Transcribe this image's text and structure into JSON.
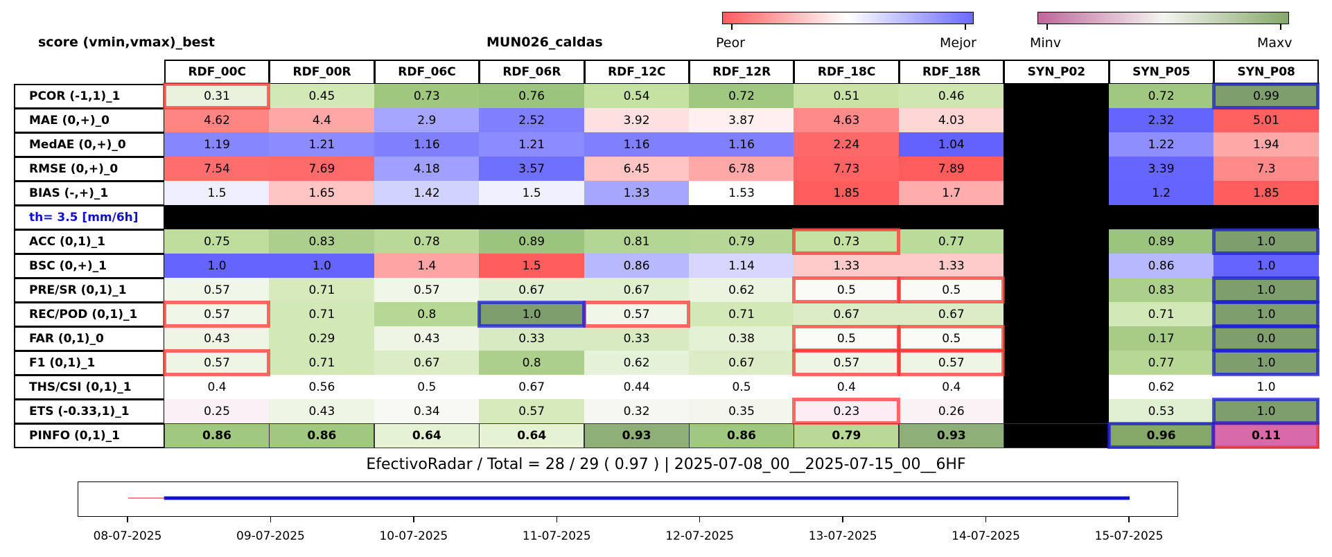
{
  "chart_data": {
    "type": "heatmap",
    "title_left": "score (vmin,vmax)_best",
    "title_center": "MUN026_caldas",
    "colorbar_score": {
      "low_label": "Peor",
      "high_label": "Mejor",
      "colors": [
        "#ff5c5c",
        "#ffffff",
        "#6a6aff"
      ]
    },
    "colorbar_range": {
      "low_label": "Minv",
      "high_label": "Maxv",
      "colors": [
        "#c0669a",
        "#f4f4f0",
        "#84a868"
      ]
    },
    "columns": [
      "RDF_00C",
      "RDF_00R",
      "RDF_06C",
      "RDF_06R",
      "RDF_12C",
      "RDF_12R",
      "RDF_18C",
      "RDF_18R",
      "SYN_P02",
      "SYN_P05",
      "SYN_P08"
    ],
    "rows": [
      {
        "label": "PCOR (-1,1)_1",
        "values": [
          "0.31",
          "0.45",
          "0.73",
          "0.76",
          "0.54",
          "0.72",
          "0.51",
          "0.46",
          null,
          "0.72",
          "0.99"
        ],
        "colors": [
          "#e9f2dc",
          "#d2e8b6",
          "#9fc77e",
          "#9bc47c",
          "#c6e2a3",
          "#a0c880",
          "#c9e3a6",
          "#d0e6b1",
          "#000000",
          "#a0c880",
          "#7e9e6e"
        ]
      },
      {
        "label": "MAE (0,+)_0",
        "values": [
          "4.62",
          "4.4",
          "2.9",
          "2.52",
          "3.92",
          "3.87",
          "4.63",
          "4.03",
          null,
          "2.32",
          "5.01"
        ],
        "colors": [
          "#ff8585",
          "#ffa6a6",
          "#a6a6ff",
          "#8080ff",
          "#ffe0e0",
          "#fff0f0",
          "#ff8a8a",
          "#ffd6d6",
          "#000000",
          "#6464ff",
          "#ff6060"
        ]
      },
      {
        "label": "MedAE (0,+)_0",
        "values": [
          "1.19",
          "1.21",
          "1.16",
          "1.21",
          "1.16",
          "1.16",
          "2.24",
          "1.04",
          null,
          "1.22",
          "1.94"
        ],
        "colors": [
          "#8686ff",
          "#8c8cff",
          "#8080ff",
          "#8c8cff",
          "#8080ff",
          "#8080ff",
          "#ff6868",
          "#6262ff",
          "#000000",
          "#8e8eff",
          "#ffa8a8"
        ]
      },
      {
        "label": "RMSE (0,+)_0",
        "values": [
          "7.54",
          "7.69",
          "4.18",
          "3.57",
          "6.45",
          "6.78",
          "7.73",
          "7.89",
          null,
          "3.39",
          "7.3"
        ],
        "colors": [
          "#ff6e6e",
          "#ff6a6a",
          "#a0a0ff",
          "#7070ff",
          "#ffc4c4",
          "#ffa8a8",
          "#ff6464",
          "#ff5c5c",
          "#000000",
          "#6666ff",
          "#ff8a8a"
        ]
      },
      {
        "label": "BIAS (-,+)_1",
        "values": [
          "1.5",
          "1.65",
          "1.42",
          "1.5",
          "1.33",
          "1.53",
          "1.85",
          "1.7",
          null,
          "1.2",
          "1.85"
        ],
        "colors": [
          "#eeeeff",
          "#ffc4c4",
          "#d2d2ff",
          "#f0f0ff",
          "#a6a6ff",
          "#ffffff",
          "#ff5c5c",
          "#ffacac",
          "#000000",
          "#6464ff",
          "#ff5c5c"
        ]
      },
      {
        "label": "th= 3.5 [mm/6h]",
        "threshold": true,
        "values": [
          null,
          null,
          null,
          null,
          null,
          null,
          null,
          null,
          null,
          null,
          null
        ],
        "colors": [
          "#000000",
          "#000000",
          "#000000",
          "#000000",
          "#000000",
          "#000000",
          "#000000",
          "#000000",
          "#000000",
          "#000000",
          "#000000"
        ]
      },
      {
        "label": "ACC (0,1)_1",
        "values": [
          "0.75",
          "0.83",
          "0.78",
          "0.89",
          "0.81",
          "0.79",
          "0.73",
          "0.77",
          null,
          "0.89",
          "1.0"
        ],
        "colors": [
          "#bfdd9c",
          "#acd08c",
          "#b9da96",
          "#9bc47c",
          "#b3d592",
          "#b6d894",
          "#c6e2a3",
          "#bbdb98",
          "#000000",
          "#9bc47c",
          "#7e9e6e"
        ]
      },
      {
        "label": "BSC (0,+)_1",
        "values": [
          "1.0",
          "1.0",
          "1.4",
          "1.5",
          "0.86",
          "1.14",
          "1.33",
          "1.33",
          null,
          "0.86",
          "1.0"
        ],
        "colors": [
          "#6464ff",
          "#6464ff",
          "#ffa4a4",
          "#ff5c5c",
          "#b8b8ff",
          "#d6d6ff",
          "#ffcaca",
          "#ffcaca",
          "#000000",
          "#b8b8ff",
          "#6464ff"
        ]
      },
      {
        "label": "PRE/SR (0,1)_1",
        "values": [
          "0.57",
          "0.71",
          "0.57",
          "0.67",
          "0.67",
          "0.62",
          "0.5",
          "0.5",
          null,
          "0.83",
          "1.0"
        ],
        "colors": [
          "#f0f6e8",
          "#d6eabc",
          "#f0f6e8",
          "#e2f0d2",
          "#e2f0d2",
          "#eaf4de",
          "#fafaf6",
          "#fafaf6",
          "#000000",
          "#acd08c",
          "#7e9e6e"
        ]
      },
      {
        "label": "REC/POD (0,1)_1",
        "values": [
          "0.57",
          "0.71",
          "0.8",
          "1.0",
          "0.57",
          "0.71",
          "0.67",
          "0.67",
          null,
          "0.71",
          "1.0"
        ],
        "colors": [
          "#f0f6e8",
          "#d2e8b6",
          "#b6d894",
          "#7e9e6e",
          "#f0f6e8",
          "#d2e8b6",
          "#dbecc6",
          "#dbecc6",
          "#000000",
          "#d2e8b6",
          "#7e9e6e"
        ]
      },
      {
        "label": "FAR (0,1)_0",
        "values": [
          "0.43",
          "0.29",
          "0.43",
          "0.33",
          "0.33",
          "0.38",
          "0.5",
          "0.5",
          null,
          "0.17",
          "0.0"
        ],
        "colors": [
          "#eef5e4",
          "#d2e8b6",
          "#eef5e4",
          "#d8ebc0",
          "#d8ebc0",
          "#e4f1d4",
          "#fafaf6",
          "#fafaf6",
          "#000000",
          "#a6cc86",
          "#7e9e6e"
        ]
      },
      {
        "label": "F1 (0,1)_1",
        "values": [
          "0.57",
          "0.71",
          "0.67",
          "0.8",
          "0.62",
          "0.67",
          "0.57",
          "0.57",
          null,
          "0.77",
          "1.0"
        ],
        "colors": [
          "#eef5e4",
          "#d2e8b6",
          "#dbecc6",
          "#acd08c",
          "#e6f2d8",
          "#dbecc6",
          "#eef5e4",
          "#eef5e4",
          "#000000",
          "#b6d894",
          "#7e9e6e"
        ]
      },
      {
        "label": "THS/CSI (0,1)_1",
        "values": [
          "0.4",
          "0.56",
          "0.5",
          "0.67",
          "0.44",
          "0.5",
          "0.4",
          "0.4",
          null,
          "0.62",
          "1.0"
        ],
        "colors": [
          "#ffffff",
          "#ffffff",
          "#ffffff",
          "#ffffff",
          "#ffffff",
          "#ffffff",
          "#ffffff",
          "#ffffff",
          "#000000",
          "#ffffff",
          "#ffffff"
        ]
      },
      {
        "label": "ETS (-0.33,1)_1",
        "values": [
          "0.25",
          "0.43",
          "0.34",
          "0.57",
          "0.32",
          "0.35",
          "0.23",
          "0.26",
          null,
          "0.53",
          "1.0"
        ],
        "colors": [
          "#fbf0f6",
          "#eef5e4",
          "#f8f8f4",
          "#d6eabc",
          "#f6f6f2",
          "#f4f6ee",
          "#fcecf4",
          "#fbf2f6",
          "#000000",
          "#e2f0d2",
          "#7e9e6e"
        ]
      },
      {
        "label": "PINFO (0,1)_1",
        "values": [
          "0.86",
          "0.86",
          "0.64",
          "0.64",
          "0.93",
          "0.86",
          "0.79",
          "0.93",
          null,
          "0.96",
          "0.11"
        ],
        "colors": [
          "#a0c880",
          "#a0c880",
          "#e6f2d4",
          "#e6f2d4",
          "#8eb076",
          "#a0c880",
          "#bad996",
          "#8eb076",
          "#000000",
          "#84a868",
          "#d96aa8"
        ]
      }
    ],
    "highlights_worst": [
      [
        0,
        0
      ],
      [
        6,
        6
      ],
      [
        8,
        6
      ],
      [
        8,
        7
      ],
      [
        9,
        0
      ],
      [
        9,
        4
      ],
      [
        10,
        6
      ],
      [
        10,
        7
      ],
      [
        11,
        0
      ],
      [
        11,
        6
      ],
      [
        11,
        7
      ],
      [
        13,
        6
      ],
      [
        14,
        10
      ]
    ],
    "highlights_best": [
      [
        0,
        10
      ],
      [
        6,
        10
      ],
      [
        8,
        10
      ],
      [
        9,
        3
      ],
      [
        9,
        10
      ],
      [
        10,
        10
      ],
      [
        11,
        10
      ],
      [
        13,
        10
      ],
      [
        14,
        9
      ]
    ],
    "highlight_colors": {
      "worst": "#ff3030",
      "best": "#1a1ad8"
    },
    "footer_text": "EfectivoRadar / Total  =  28 / 29 ( 0.97 ) | 2025-07-08_00__2025-07-15_00__6HF",
    "timeline": {
      "tick_labels": [
        "08-07-2025",
        "09-07-2025",
        "10-07-2025",
        "11-07-2025",
        "12-07-2025",
        "13-07-2025",
        "14-07-2025",
        "15-07-2025"
      ],
      "missing_span_days": [
        0,
        0.25
      ],
      "valid_span_days": [
        0.25,
        7
      ],
      "colors": {
        "missing": "#ff5c5c",
        "valid": "#1010d8"
      }
    }
  }
}
